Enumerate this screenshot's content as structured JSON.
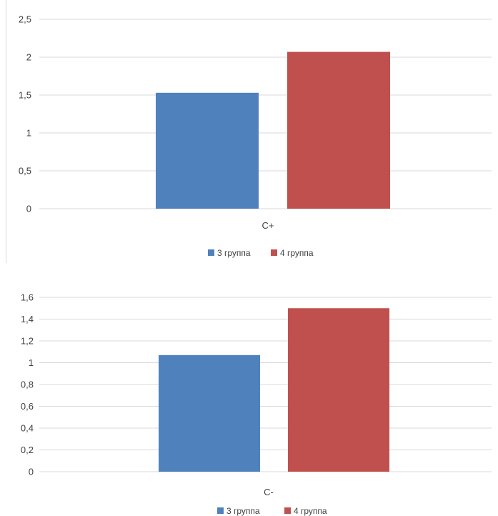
{
  "chart_data": [
    {
      "type": "bar",
      "categories": [
        "C+"
      ],
      "series": [
        {
          "name": "3 группа",
          "values": [
            1.53
          ],
          "color": "#4f81bd"
        },
        {
          "name": "4 группа",
          "values": [
            2.07
          ],
          "color": "#c0504d"
        }
      ],
      "ylim": [
        0,
        2.5
      ],
      "yticks": [
        "0",
        "0,5",
        "1",
        "1,5",
        "2",
        "2,5"
      ],
      "ytick_values": [
        0,
        0.5,
        1,
        1.5,
        2,
        2.5
      ],
      "grid": true,
      "legend": "bottom"
    },
    {
      "type": "bar",
      "categories": [
        "C-"
      ],
      "series": [
        {
          "name": "3 группа",
          "values": [
            1.07
          ],
          "color": "#4f81bd"
        },
        {
          "name": "4 группа",
          "values": [
            1.5
          ],
          "color": "#c0504d"
        }
      ],
      "ylim": [
        0,
        1.6
      ],
      "yticks": [
        "0",
        "0,2",
        "0,4",
        "0,6",
        "0,8",
        "1",
        "1,2",
        "1,4",
        "1,6"
      ],
      "ytick_values": [
        0,
        0.2,
        0.4,
        0.6,
        0.8,
        1,
        1.2,
        1.4,
        1.6
      ],
      "grid": true,
      "legend": "bottom"
    }
  ]
}
